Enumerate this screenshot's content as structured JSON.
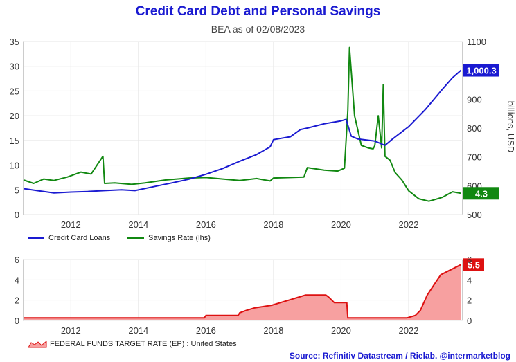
{
  "title": "Credit Card Debt and Personal Savings",
  "subtitle": "BEA as of 02/08/2023",
  "source": "Source: Refinitiv Datastream / Rielab. @intermarketblog",
  "colors": {
    "credit": "#1a1ad1",
    "savings": "#118811",
    "fedfunds_line": "#dd1111",
    "fedfunds_fill": "#f7a0a0"
  },
  "chart_data": [
    {
      "type": "line",
      "title": "Credit Card Debt and Personal Savings",
      "xlim": [
        2010.6,
        2023.6
      ],
      "x_ticks": [
        "2012",
        "2014",
        "2016",
        "2018",
        "2020",
        "2022"
      ],
      "left_axis": {
        "ylim": [
          0,
          35
        ],
        "ticks": [
          "0",
          "5",
          "10",
          "15",
          "20",
          "25",
          "30",
          "35"
        ]
      },
      "right_axis": {
        "ylabel": "billions, USD",
        "ylim": [
          500,
          1100
        ],
        "ticks": [
          "500",
          "600",
          "700",
          "800",
          "900",
          "1000",
          "1100"
        ]
      },
      "grid": true,
      "legend": "bottom-left",
      "series": [
        {
          "name": "Credit Card Loans",
          "axis": "right",
          "last_value_label": "1,000.3",
          "x": [
            2010.6,
            2011.0,
            2011.5,
            2012.0,
            2012.5,
            2013.0,
            2013.5,
            2013.9,
            2014.5,
            2015.0,
            2015.5,
            2016.0,
            2016.5,
            2017.0,
            2017.5,
            2017.9,
            2018.0,
            2018.5,
            2018.8,
            2019.0,
            2019.5,
            2020.0,
            2020.15,
            2020.3,
            2020.5,
            2021.0,
            2021.3,
            2021.5,
            2022.0,
            2022.5,
            2023.0,
            2023.3,
            2023.55
          ],
          "y": [
            590,
            583,
            575,
            578,
            580,
            583,
            586,
            583,
            598,
            610,
            623,
            640,
            660,
            685,
            708,
            735,
            760,
            770,
            795,
            800,
            815,
            825,
            830,
            772,
            762,
            755,
            740,
            760,
            805,
            865,
            935,
            975,
            1000.3
          ]
        },
        {
          "name": "Savings Rate (lhs)",
          "axis": "left",
          "last_value_label": "4.3",
          "x": [
            2010.6,
            2010.9,
            2011.2,
            2011.5,
            2011.9,
            2012.3,
            2012.6,
            2012.95,
            2013.0,
            2013.3,
            2013.8,
            2014.2,
            2014.8,
            2015.5,
            2016.0,
            2016.5,
            2017.0,
            2017.5,
            2017.9,
            2018.0,
            2018.5,
            2018.9,
            2019.0,
            2019.5,
            2019.9,
            2020.1,
            2020.2,
            2020.25,
            2020.4,
            2020.6,
            2020.8,
            2020.95,
            2021.0,
            2021.1,
            2021.2,
            2021.25,
            2021.3,
            2021.45,
            2021.6,
            2021.8,
            2022.0,
            2022.3,
            2022.6,
            2022.8,
            2023.0,
            2023.3,
            2023.55
          ],
          "y": [
            7.0,
            6.3,
            7.2,
            6.9,
            7.6,
            8.6,
            8.2,
            11.8,
            6.3,
            6.4,
            6.1,
            6.4,
            7.0,
            7.4,
            7.5,
            7.2,
            6.9,
            7.3,
            6.8,
            7.4,
            7.5,
            7.6,
            9.5,
            9.0,
            8.8,
            9.4,
            21.0,
            33.8,
            20.0,
            14.0,
            13.5,
            13.3,
            14.0,
            20.0,
            13.5,
            26.3,
            11.8,
            11.0,
            8.5,
            7.0,
            4.8,
            3.2,
            2.7,
            3.1,
            3.5,
            4.6,
            4.3
          ]
        }
      ]
    },
    {
      "type": "area",
      "series_label": "FEDERAL FUNDS TARGET RATE (EP) : United States",
      "last_value_label": "5.5",
      "xlim": [
        2010.6,
        2023.6
      ],
      "ylim": [
        0,
        6
      ],
      "x_ticks": [
        "2012",
        "2014",
        "2016",
        "2018",
        "2020",
        "2022"
      ],
      "left_ticks": [
        "0",
        "2",
        "4",
        "6"
      ],
      "right_ticks": [
        "0",
        "2",
        "4",
        "6"
      ],
      "grid": true,
      "legend": "bottom-left",
      "x": [
        2010.6,
        2015.95,
        2016.0,
        2016.95,
        2017.0,
        2017.2,
        2017.45,
        2017.95,
        2018.2,
        2018.45,
        2018.7,
        2018.95,
        2019.55,
        2019.65,
        2019.8,
        2020.17,
        2020.2,
        2020.25,
        2021.95,
        2022.2,
        2022.35,
        2022.45,
        2022.55,
        2022.7,
        2022.85,
        2022.95,
        2023.1,
        2023.25,
        2023.55
      ],
      "y": [
        0.25,
        0.25,
        0.5,
        0.5,
        0.75,
        1.0,
        1.25,
        1.5,
        1.75,
        2.0,
        2.25,
        2.5,
        2.5,
        2.25,
        1.75,
        1.75,
        0.25,
        0.25,
        0.25,
        0.5,
        1.0,
        1.75,
        2.5,
        3.25,
        4.0,
        4.5,
        4.75,
        5.0,
        5.5
      ]
    }
  ]
}
